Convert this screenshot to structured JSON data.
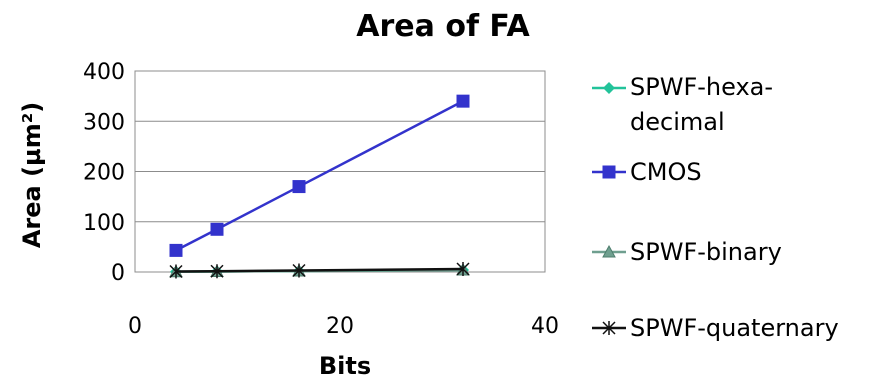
{
  "chart_data": {
    "type": "line",
    "title": "Area of FA",
    "xlabel": "Bits",
    "ylabel": "Area (µm²)",
    "xlim": [
      0,
      40
    ],
    "ylim": [
      0,
      400
    ],
    "x_ticks": [
      "0",
      "20",
      "40"
    ],
    "y_ticks": [
      "0",
      "100",
      "200",
      "300",
      "400"
    ],
    "grid": "horizontal",
    "legend_position": "right",
    "series": [
      {
        "name_lines": [
          "SPWF-hexa-",
          "decimal"
        ],
        "name": "SPWF-hexa-decimal",
        "color": "#22c39a",
        "marker": "diamond",
        "x": [
          4,
          8,
          16,
          32
        ],
        "y": [
          0.5,
          1,
          2,
          4
        ]
      },
      {
        "name_lines": [
          "CMOS"
        ],
        "name": "CMOS",
        "color": "#3333cc",
        "marker": "square",
        "x": [
          4,
          8,
          16,
          32
        ],
        "y": [
          43,
          85,
          170,
          340
        ]
      },
      {
        "name_lines": [
          "SPWF-binary"
        ],
        "name": "SPWF-binary",
        "color": "#6f9f8f",
        "marker": "triangle",
        "x": [
          4,
          8,
          16,
          32
        ],
        "y": [
          0.5,
          1,
          2,
          4
        ]
      },
      {
        "name_lines": [
          "SPWF-quaternary"
        ],
        "name": "SPWF-quaternary",
        "color": "#111111",
        "marker": "star",
        "x": [
          4,
          8,
          16,
          32
        ],
        "y": [
          1,
          1.5,
          3,
          6
        ]
      }
    ]
  }
}
